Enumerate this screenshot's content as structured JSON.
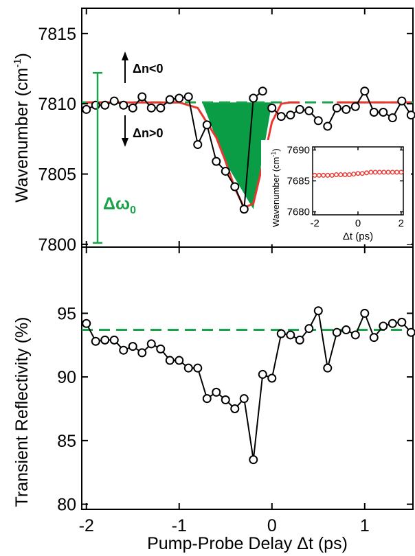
{
  "chart_data": [
    {
      "type": "line",
      "panel": "top",
      "xlim": [
        -2.05,
        1.52
      ],
      "ylim": [
        7799.8,
        7816.8
      ],
      "yticks": [
        7800,
        7805,
        7810,
        7815
      ],
      "ytick_labels": [
        "7800",
        "7805",
        "7810",
        "7815"
      ],
      "ylabel_main": "Wavenumber (cm",
      "ylabel_sup": "-1",
      "ylabel_close": ")",
      "series": [
        {
          "x": [
            -2.0,
            -1.9,
            -1.8,
            -1.7,
            -1.6,
            -1.5,
            -1.4,
            -1.3,
            -1.2,
            -1.1,
            -1.0,
            -0.9,
            -0.8,
            -0.7,
            -0.6,
            -0.5,
            -0.4,
            -0.3,
            -0.2,
            -0.1,
            0.0,
            0.1,
            0.2,
            0.3,
            0.4,
            0.5,
            0.6,
            0.7,
            0.8,
            0.9,
            1.0,
            1.1,
            1.2,
            1.3,
            1.4,
            1.5
          ],
          "y": [
            7809.6,
            7809.9,
            7809.9,
            7810.2,
            7809.9,
            7809.7,
            7810.5,
            7809.7,
            7809.7,
            7810.3,
            7810.4,
            7810.5,
            7807.1,
            7808.5,
            7805.9,
            7805.2,
            7804.1,
            7802.5,
            7810.4,
            7810.9,
            7809.7,
            7809.1,
            7809.2,
            7809.6,
            7809.5,
            7808.8,
            7808.4,
            7809.7,
            7809.6,
            7809.8,
            7810.9,
            7809.4,
            7809.4,
            7809.0,
            7810.2,
            7809.2
          ],
          "gaps_after": [
            19,
            25
          ]
        }
      ],
      "fit_curve": {
        "x": [
          -2.0,
          -1.0,
          -0.8,
          -0.6,
          -0.5,
          -0.4,
          -0.3,
          -0.2,
          -0.1,
          0.0,
          0.1,
          0.2,
          0.3
        ],
        "y": [
          7810.1,
          7810.1,
          7809.7,
          7807.6,
          7805.9,
          7804.0,
          7802.6,
          7802.9,
          7805.7,
          7808.7,
          7810.0,
          7810.1,
          7810.1
        ]
      },
      "fit_curve_gap_x": [
        0.3,
        0.7
      ],
      "fit_curve_tail_x": [
        0.7,
        1.5
      ],
      "baseline": 7810.1,
      "shaded_region": {
        "x": [
          -0.75,
          -0.5,
          -0.2,
          0.0
        ],
        "y": [
          7810.1,
          7805.8,
          7802.5,
          7810.1
        ]
      },
      "annotations": {
        "up_label": "Δn<0",
        "down_label": "Δn>0",
        "delta_omega": "Δω",
        "delta_omega_sub": "0",
        "bracket_y": [
          7800.1,
          7812.2
        ],
        "bracket_x": -2.38
      },
      "inset": {
        "xlim": [
          -2.1,
          2.1
        ],
        "ylim": [
          7679.5,
          7690.5
        ],
        "xticks": [
          -2,
          0,
          2
        ],
        "xtick_labels": [
          "-2",
          "0",
          "2"
        ],
        "yticks": [
          7680,
          7685,
          7690
        ],
        "ytick_labels": [
          "7680",
          "7685",
          "7690"
        ],
        "xlabel": "Δt (ps)",
        "ylabel_main": "Wavenumber (cm",
        "ylabel_sup": "-1",
        "ylabel_close": ")",
        "x": [
          -2.0,
          -1.8,
          -1.6,
          -1.4,
          -1.2,
          -1.0,
          -0.8,
          -0.6,
          -0.4,
          -0.2,
          0.0,
          0.2,
          0.4,
          0.6,
          0.8,
          1.0,
          1.2,
          1.4,
          1.6,
          1.8,
          2.0
        ],
        "y": [
          7685.9,
          7685.9,
          7685.9,
          7685.9,
          7685.9,
          7686.0,
          7686.0,
          7686.0,
          7686.0,
          7686.1,
          7686.2,
          7686.2,
          7686.3,
          7686.4,
          7686.4,
          7686.4,
          7686.4,
          7686.4,
          7686.4,
          7686.4,
          7686.4
        ]
      }
    },
    {
      "type": "line",
      "panel": "bottom",
      "xlim": [
        -2.05,
        1.52
      ],
      "ylim": [
        79.6,
        100.2
      ],
      "yticks": [
        80,
        85,
        90,
        95
      ],
      "ytick_labels": [
        "80",
        "85",
        "90",
        "95"
      ],
      "xticks": [
        -2,
        -1,
        0,
        1
      ],
      "xtick_labels": [
        "-2",
        "-1",
        "0",
        "1"
      ],
      "ylabel": "Transient Reflectivity (%)",
      "xlabel": "Pump-Probe Delay Δt (ps)",
      "baseline": 93.7,
      "series": [
        {
          "x": [
            -2.0,
            -1.9,
            -1.8,
            -1.7,
            -1.6,
            -1.5,
            -1.4,
            -1.3,
            -1.2,
            -1.1,
            -1.0,
            -0.9,
            -0.8,
            -0.7,
            -0.6,
            -0.5,
            -0.4,
            -0.3,
            -0.2,
            -0.1,
            0.0,
            0.1,
            0.2,
            0.3,
            0.4,
            0.5,
            0.6,
            0.7,
            0.8,
            0.9,
            1.0,
            1.1,
            1.2,
            1.3,
            1.4,
            1.5
          ],
          "y": [
            94.2,
            92.8,
            92.9,
            92.9,
            92.1,
            92.4,
            91.9,
            92.6,
            92.2,
            91.3,
            91.3,
            90.7,
            90.7,
            88.3,
            88.8,
            88.2,
            87.5,
            88.3,
            83.5,
            90.2,
            89.9,
            93.4,
            93.3,
            92.9,
            93.8,
            95.2,
            90.7,
            93.5,
            93.7,
            93.3,
            95.0,
            93.1,
            94.0,
            94.2,
            94.3,
            93.5
          ]
        }
      ]
    }
  ],
  "colors": {
    "axis": "#000000",
    "data": "#000000",
    "marker_fill": "#ffffff",
    "fit": "#e8372f",
    "shade": "#0a9d46",
    "baseline": "#1aa34a",
    "annotation": "#1aa34a",
    "inset_marker": "#e8372f"
  }
}
